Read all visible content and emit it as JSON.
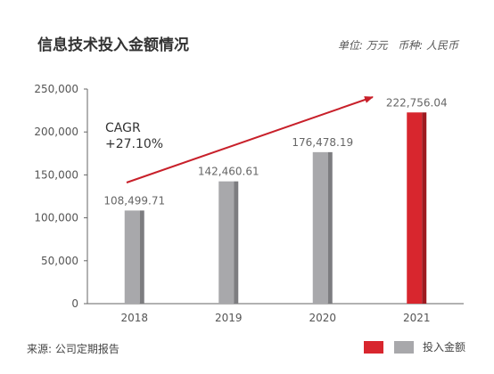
{
  "title": "信息技术投入金额情况",
  "unit_note": "单位: 万元   币种: 人民币",
  "source": "来源: 公司定期报告",
  "legend": {
    "label": "投入金额",
    "colors": [
      "#d8262e",
      "#a8a8ab"
    ]
  },
  "chart_data": {
    "type": "bar",
    "categories": [
      "2018",
      "2019",
      "2020",
      "2021"
    ],
    "values": [
      108499.71,
      142460.61,
      176478.19,
      222756.04
    ],
    "value_labels": [
      "108,499.71",
      "142,460.61",
      "176,478.19",
      "222,756.04"
    ],
    "bar_colors": [
      "#a8a8ab",
      "#a8a8ab",
      "#a8a8ab",
      "#d8262e"
    ],
    "ylim": [
      0,
      250000
    ],
    "yticks": [
      0,
      50000,
      100000,
      150000,
      200000,
      250000
    ],
    "ytick_labels": [
      "0",
      "50,000",
      "100,000",
      "150,000",
      "200,000",
      "250,000"
    ],
    "annotation": {
      "line1": "CAGR",
      "line2": "+27.10%"
    },
    "grid": false
  }
}
